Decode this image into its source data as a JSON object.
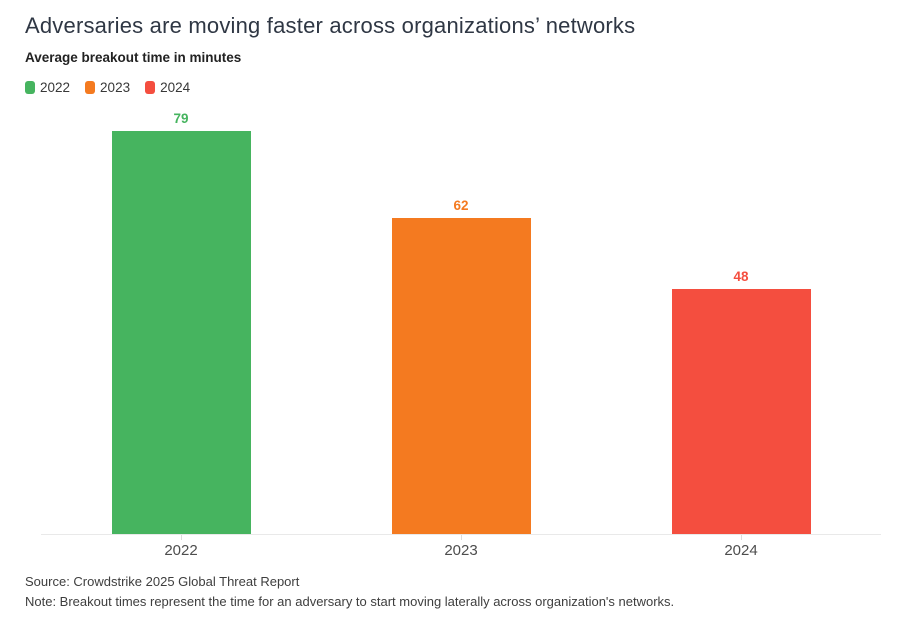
{
  "chart_data": {
    "type": "bar",
    "title": "Adversaries are moving faster across organizations’ networks",
    "subtitle": "Average breakout time in minutes",
    "categories": [
      "2022",
      "2023",
      "2024"
    ],
    "values": [
      79,
      62,
      48
    ],
    "bar_colors": [
      "#46b45f",
      "#f47a20",
      "#f44e3f"
    ],
    "legend": [
      {
        "label": "2022",
        "color": "#46b45f"
      },
      {
        "label": "2023",
        "color": "#f47a20"
      },
      {
        "label": "2024",
        "color": "#f44e3f"
      }
    ],
    "legend_position": "top-left",
    "xlabel": "",
    "ylabel": "",
    "ylim": [
      0,
      83
    ],
    "grid": false,
    "source": "Source: Crowdstrike 2025 Global Threat Report",
    "note": "Note: Breakout times represent the time for an adversary to start moving laterally across organization's networks."
  }
}
